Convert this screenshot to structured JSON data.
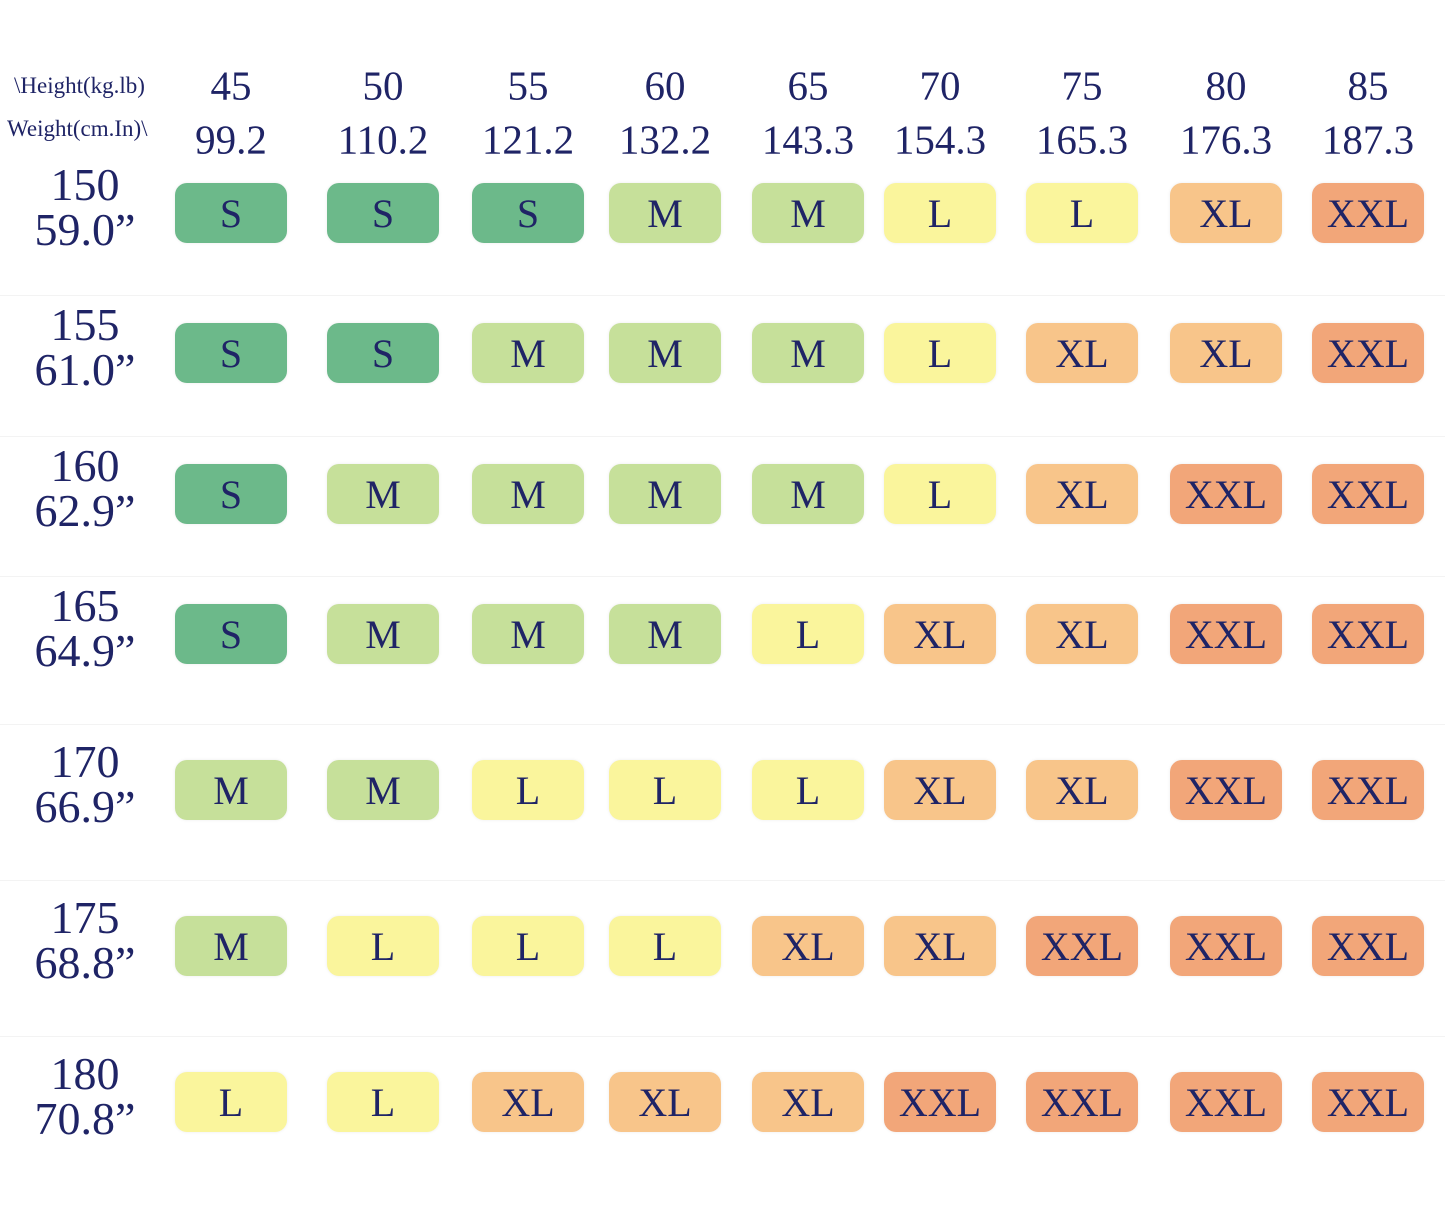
{
  "header": {
    "height_label": "\\Height(kg.lb)",
    "weight_label": "Weight(cm.In)\\"
  },
  "columns": [
    {
      "kg": "45",
      "lb": "99.2"
    },
    {
      "kg": "50",
      "lb": "110.2"
    },
    {
      "kg": "55",
      "lb": "121.2"
    },
    {
      "kg": "60",
      "lb": "132.2"
    },
    {
      "kg": "65",
      "lb": "143.3"
    },
    {
      "kg": "70",
      "lb": "154.3"
    },
    {
      "kg": "75",
      "lb": "165.3"
    },
    {
      "kg": "80",
      "lb": "176.3"
    },
    {
      "kg": "85",
      "lb": "187.3"
    }
  ],
  "rows": [
    {
      "cm": "150",
      "in": "59.0”",
      "sizes": [
        "S",
        "S",
        "S",
        "M",
        "M",
        "L",
        "L",
        "XL",
        "XXL"
      ]
    },
    {
      "cm": "155",
      "in": "61.0”",
      "sizes": [
        "S",
        "S",
        "M",
        "M",
        "M",
        "L",
        "XL",
        "XL",
        "XXL"
      ]
    },
    {
      "cm": "160",
      "in": "62.9”",
      "sizes": [
        "S",
        "M",
        "M",
        "M",
        "M",
        "L",
        "XL",
        "XXL",
        "XXL"
      ]
    },
    {
      "cm": "165",
      "in": "64.9”",
      "sizes": [
        "S",
        "M",
        "M",
        "M",
        "L",
        "XL",
        "XL",
        "XXL",
        "XXL"
      ]
    },
    {
      "cm": "170",
      "in": "66.9”",
      "sizes": [
        "M",
        "M",
        "L",
        "L",
        "L",
        "XL",
        "XL",
        "XXL",
        "XXL"
      ]
    },
    {
      "cm": "175",
      "in": "68.8”",
      "sizes": [
        "M",
        "L",
        "L",
        "L",
        "XL",
        "XL",
        "XXL",
        "XXL",
        "XXL"
      ]
    },
    {
      "cm": "180",
      "in": "70.8”",
      "sizes": [
        "L",
        "L",
        "XL",
        "XL",
        "XL",
        "XXL",
        "XXL",
        "XXL",
        "XXL"
      ]
    }
  ],
  "colors": {
    "S": "#6cb98a",
    "M": "#c6e09a",
    "L": "#faf59c",
    "XL": "#f8c58a",
    "XXL": "#f2a679"
  }
}
